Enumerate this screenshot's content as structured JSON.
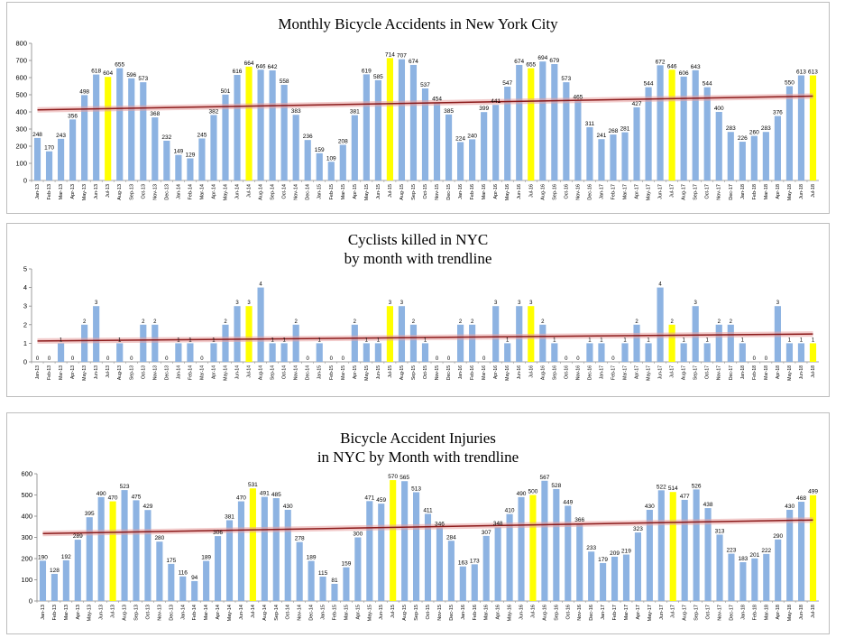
{
  "chart_data": [
    {
      "type": "bar",
      "title": "Monthly Bicycle Accidents in New York City",
      "xlabel": "",
      "ylabel": "",
      "ylim": [
        0,
        800
      ],
      "yticks": [
        0,
        100,
        200,
        300,
        400,
        500,
        600,
        700,
        800
      ],
      "grid": false,
      "legend": "none",
      "trendline": {
        "type": "linear",
        "start": 412,
        "end": 492
      },
      "colors": {
        "bar": "#8db3e2",
        "highlight": "#ffff00",
        "trend": "#8b1a1a",
        "trend_band": "#e8a0a0"
      },
      "highlight_months": [
        "Jul",
        "Jul",
        "Jul",
        "Jul",
        "Jul",
        "Jul"
      ],
      "categories": [
        "Jan-13",
        "Feb-13",
        "Mar-13",
        "Apr-13",
        "May-13",
        "Jun-13",
        "Jul-13",
        "Aug-13",
        "Sep-13",
        "Oct-13",
        "Nov-13",
        "Dec-13",
        "Jan-14",
        "Feb-14",
        "Mar-14",
        "Apr-14",
        "May-14",
        "Jun-14",
        "Jul-14",
        "Aug-14",
        "Sep-14",
        "Oct-14",
        "Nov-14",
        "Dec-14",
        "Jan-15",
        "Feb-15",
        "Mar-15",
        "Apr-15",
        "May-15",
        "Jun-15",
        "Jul-15",
        "Aug-15",
        "Sep-15",
        "Oct-15",
        "Nov-15",
        "Dec-15",
        "Jan-16",
        "Feb-16",
        "Mar-16",
        "Apr-16",
        "May-16",
        "Jun-16",
        "Jul-16",
        "Aug-16",
        "Sep-16",
        "Oct-16",
        "Nov-16",
        "Dec-16",
        "Jan-17",
        "Feb-17",
        "Mar-17",
        "Apr-17",
        "May-17",
        "Jun-17",
        "Jul-17",
        "Aug-17",
        "Sep-17",
        "Oct-17",
        "Nov-17",
        "Dec-17",
        "Jan-18",
        "Feb-18",
        "Mar-18",
        "Apr-18",
        "May-18",
        "Jun-18",
        "Jul-18"
      ],
      "values": [
        248,
        170,
        243,
        356,
        498,
        618,
        604,
        655,
        596,
        573,
        368,
        232,
        149,
        129,
        245,
        382,
        501,
        616,
        664,
        646,
        642,
        558,
        383,
        236,
        159,
        109,
        208,
        381,
        619,
        585,
        714,
        707,
        674,
        537,
        454,
        385,
        224,
        240,
        399,
        441,
        547,
        674,
        655,
        694,
        679,
        573,
        465,
        311,
        241,
        268,
        281,
        427,
        544,
        672,
        646,
        606,
        643,
        544,
        400,
        283,
        226,
        260,
        283,
        376,
        550,
        613,
        613
      ]
    },
    {
      "type": "bar",
      "title": "Cyclists killed in NYC\nby month with trendline",
      "xlabel": "",
      "ylabel": "",
      "ylim": [
        0,
        5
      ],
      "yticks": [
        0,
        1,
        2,
        3,
        4,
        5
      ],
      "grid": false,
      "legend": "none",
      "trendline": {
        "type": "linear",
        "start": 1.12,
        "end": 1.5
      },
      "colors": {
        "bar": "#8db3e2",
        "highlight": "#ffff00",
        "trend": "#8b1a1a",
        "trend_band": "#e8a0a0"
      },
      "categories": [
        "Jan-13",
        "Feb-13",
        "Mar-13",
        "Apr-13",
        "May-13",
        "Jun-13",
        "Jul-13",
        "Aug-13",
        "Sep-13",
        "Oct-13",
        "Nov-13",
        "Dec-13",
        "Jan-14",
        "Feb-14",
        "Mar-14",
        "Apr-14",
        "May-14",
        "Jun-14",
        "Jul-14",
        "Aug-14",
        "Sep-14",
        "Oct-14",
        "Nov-14",
        "Dec-14",
        "Jan-15",
        "Feb-15",
        "Mar-15",
        "Apr-15",
        "May-15",
        "Jun-15",
        "Jul-15",
        "Aug-15",
        "Sep-15",
        "Oct-15",
        "Nov-15",
        "Dec-15",
        "Jan-16",
        "Feb-16",
        "Mar-16",
        "Apr-16",
        "May-16",
        "Jun-16",
        "Jul-16",
        "Aug-16",
        "Sep-16",
        "Oct-16",
        "Nov-16",
        "Dec-16",
        "Jan-17",
        "Feb-17",
        "Mar-17",
        "Apr-17",
        "May-17",
        "Jun-17",
        "Jul-17",
        "Aug-17",
        "Sep-17",
        "Oct-17",
        "Nov-17",
        "Dec-17",
        "Jan-18",
        "Feb-18",
        "Mar-18",
        "Apr-18",
        "May-18",
        "Jun-18",
        "Jul-18"
      ],
      "values": [
        0,
        0,
        1,
        0,
        2,
        3,
        0,
        1,
        0,
        2,
        2,
        0,
        1,
        1,
        0,
        1,
        2,
        3,
        3,
        4,
        1,
        1,
        2,
        0,
        1,
        0,
        0,
        2,
        1,
        1,
        3,
        3,
        2,
        1,
        0,
        0,
        2,
        2,
        0,
        3,
        1,
        3,
        3,
        2,
        1,
        0,
        0,
        1,
        1,
        0,
        1,
        2,
        1,
        4,
        2,
        1,
        3,
        1,
        2,
        2,
        1,
        0,
        0,
        3,
        1,
        1,
        1
      ]
    },
    {
      "type": "bar",
      "title": "Bicycle Accident Injuries\nin NYC by Month with trendline",
      "xlabel": "",
      "ylabel": "",
      "ylim": [
        0,
        600
      ],
      "yticks": [
        0,
        100,
        200,
        300,
        400,
        500,
        600
      ],
      "grid": false,
      "legend": "none",
      "trendline": {
        "type": "linear",
        "start": 318,
        "end": 382
      },
      "colors": {
        "bar": "#8db3e2",
        "highlight": "#ffff00",
        "trend": "#8b1a1a",
        "trend_band": "#e8a0a0"
      },
      "categories": [
        "Jan-13",
        "Feb-13",
        "Mar-13",
        "Apr-13",
        "May-13",
        "Jun-13",
        "Jul-13",
        "Aug-13",
        "Sep-13",
        "Oct-13",
        "Nov-13",
        "Dec-13",
        "Jan-14",
        "Feb-14",
        "Mar-14",
        "Apr-14",
        "May-14",
        "Jun-14",
        "Jul-14",
        "Aug-14",
        "Sep-14",
        "Oct-14",
        "Nov-14",
        "Dec-14",
        "Jan-15",
        "Feb-15",
        "Mar-15",
        "Apr-15",
        "May-15",
        "Jun-15",
        "Jul-15",
        "Aug-15",
        "Sep-15",
        "Oct-15",
        "Nov-15",
        "Dec-15",
        "Jan-16",
        "Feb-16",
        "Mar-16",
        "Apr-16",
        "May-16",
        "Jun-16",
        "Jul-16",
        "Aug-16",
        "Sep-16",
        "Oct-16",
        "Nov-16",
        "Dec-16",
        "Jan-17",
        "Feb-17",
        "Mar-17",
        "Apr-17",
        "May-17",
        "Jun-17",
        "Jul-17",
        "Aug-17",
        "Sep-17",
        "Oct-17",
        "Nov-17",
        "Dec-17",
        "Jan-18",
        "Feb-18",
        "Mar-18",
        "Apr-18",
        "May-18",
        "Jun-18",
        "Jul-18"
      ],
      "values": [
        190,
        128,
        192,
        289,
        395,
        490,
        470,
        523,
        475,
        429,
        280,
        175,
        116,
        94,
        189,
        306,
        381,
        470,
        531,
        491,
        485,
        430,
        278,
        189,
        115,
        81,
        159,
        300,
        471,
        459,
        570,
        565,
        513,
        411,
        346,
        284,
        163,
        173,
        307,
        348,
        410,
        490,
        500,
        567,
        528,
        449,
        366,
        233,
        179,
        209,
        219,
        323,
        430,
        522,
        514,
        477,
        526,
        438,
        313,
        223,
        183,
        201,
        222,
        290,
        430,
        468,
        499
      ]
    }
  ]
}
